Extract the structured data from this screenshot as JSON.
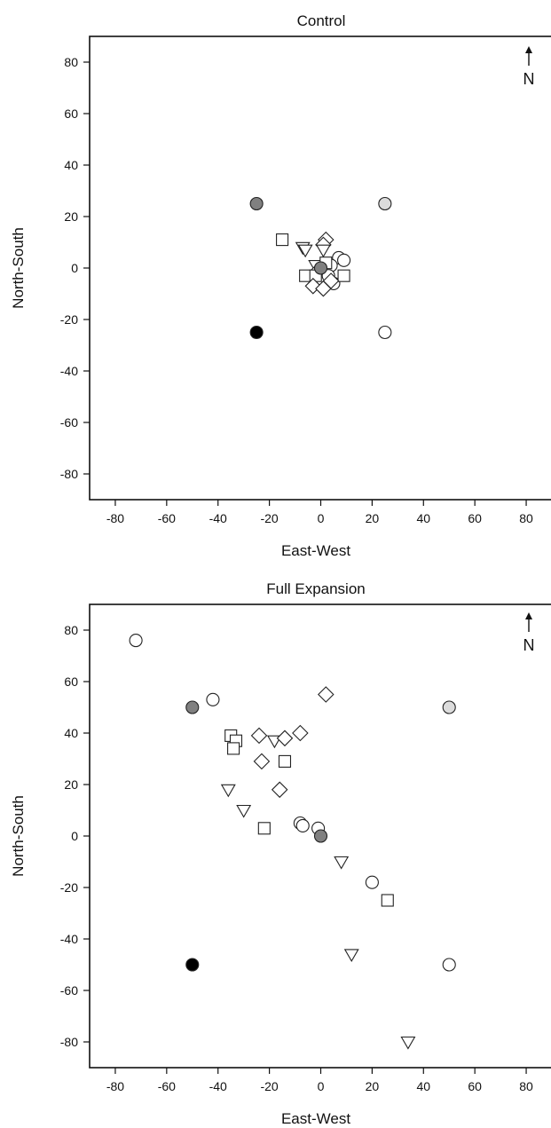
{
  "chart_data": [
    {
      "type": "scatter",
      "title": "Control",
      "xlabel": "East-West",
      "ylabel": "North-South",
      "xlim": [
        -90,
        90
      ],
      "ylim": [
        -90,
        90
      ],
      "xticks": [
        -80,
        -60,
        -40,
        -20,
        0,
        20,
        40,
        60,
        80
      ],
      "yticks": [
        -80,
        -60,
        -40,
        -20,
        0,
        20,
        40,
        60,
        80
      ],
      "grid": false,
      "north_label": "N",
      "markers": {
        "source_center": {
          "shape": "circle",
          "fill": "#808080"
        },
        "source_nw": {
          "shape": "circle",
          "fill": "#808080"
        },
        "source_sw": {
          "shape": "circle",
          "fill": "#000000"
        },
        "source_ne": {
          "shape": "circle",
          "fill": "#dcdcdc"
        },
        "source_se": {
          "shape": "circle",
          "fill": "#ffffff"
        },
        "circle": {
          "shape": "circle",
          "fill": "#ffffff"
        },
        "square": {
          "shape": "square",
          "fill": "#ffffff"
        },
        "diamond": {
          "shape": "diamond",
          "fill": "#ffffff"
        },
        "triangle": {
          "shape": "triangle-down",
          "fill": "#ffffff"
        }
      },
      "points": [
        {
          "x": -25,
          "y": 25,
          "marker": "source_nw"
        },
        {
          "x": 25,
          "y": 25,
          "marker": "source_ne"
        },
        {
          "x": -25,
          "y": -25,
          "marker": "source_sw"
        },
        {
          "x": 25,
          "y": -25,
          "marker": "source_se"
        },
        {
          "x": -15,
          "y": 11,
          "marker": "square"
        },
        {
          "x": -7,
          "y": 8,
          "marker": "triangle"
        },
        {
          "x": -6,
          "y": 7,
          "marker": "triangle"
        },
        {
          "x": 2,
          "y": 11,
          "marker": "diamond"
        },
        {
          "x": 1,
          "y": 9,
          "marker": "diamond"
        },
        {
          "x": 1,
          "y": 7,
          "marker": "triangle"
        },
        {
          "x": 7,
          "y": 4,
          "marker": "circle"
        },
        {
          "x": 9,
          "y": 3,
          "marker": "circle"
        },
        {
          "x": 4,
          "y": 1,
          "marker": "circle"
        },
        {
          "x": -2,
          "y": 1,
          "marker": "triangle"
        },
        {
          "x": -1,
          "y": -1,
          "marker": "diamond"
        },
        {
          "x": 2,
          "y": 2,
          "marker": "square"
        },
        {
          "x": -6,
          "y": -3,
          "marker": "square"
        },
        {
          "x": -2,
          "y": -3,
          "marker": "square"
        },
        {
          "x": 3,
          "y": -3,
          "marker": "circle"
        },
        {
          "x": 5,
          "y": -6,
          "marker": "circle"
        },
        {
          "x": 9,
          "y": -3,
          "marker": "square"
        },
        {
          "x": -3,
          "y": -7,
          "marker": "diamond"
        },
        {
          "x": 1,
          "y": -8,
          "marker": "diamond"
        },
        {
          "x": 4,
          "y": -5,
          "marker": "diamond"
        },
        {
          "x": 0,
          "y": 0,
          "marker": "source_center"
        }
      ]
    },
    {
      "type": "scatter",
      "title": "Full Expansion",
      "xlabel": "East-West",
      "ylabel": "North-South",
      "xlim": [
        -90,
        90
      ],
      "ylim": [
        -90,
        90
      ],
      "xticks": [
        -80,
        -60,
        -40,
        -20,
        0,
        20,
        40,
        60,
        80
      ],
      "yticks": [
        -80,
        -60,
        -40,
        -20,
        0,
        20,
        40,
        60,
        80
      ],
      "grid": false,
      "north_label": "N",
      "markers": {
        "source_center": {
          "shape": "circle",
          "fill": "#808080"
        },
        "source_nw": {
          "shape": "circle",
          "fill": "#808080"
        },
        "source_sw": {
          "shape": "circle",
          "fill": "#000000"
        },
        "source_ne": {
          "shape": "circle",
          "fill": "#dcdcdc"
        },
        "source_se": {
          "shape": "circle",
          "fill": "#ffffff"
        },
        "circle": {
          "shape": "circle",
          "fill": "#ffffff"
        },
        "square": {
          "shape": "square",
          "fill": "#ffffff"
        },
        "diamond": {
          "shape": "diamond",
          "fill": "#ffffff"
        },
        "triangle": {
          "shape": "triangle-down",
          "fill": "#ffffff"
        }
      },
      "points": [
        {
          "x": -72,
          "y": 76,
          "marker": "circle"
        },
        {
          "x": -50,
          "y": 50,
          "marker": "source_nw"
        },
        {
          "x": -42,
          "y": 53,
          "marker": "circle"
        },
        {
          "x": 50,
          "y": 50,
          "marker": "source_ne"
        },
        {
          "x": 2,
          "y": 55,
          "marker": "diamond"
        },
        {
          "x": -35,
          "y": 39,
          "marker": "square"
        },
        {
          "x": -33,
          "y": 37,
          "marker": "square"
        },
        {
          "x": -34,
          "y": 34,
          "marker": "square"
        },
        {
          "x": -24,
          "y": 39,
          "marker": "diamond"
        },
        {
          "x": -18,
          "y": 37,
          "marker": "triangle"
        },
        {
          "x": -14,
          "y": 38,
          "marker": "diamond"
        },
        {
          "x": -8,
          "y": 40,
          "marker": "diamond"
        },
        {
          "x": -23,
          "y": 29,
          "marker": "diamond"
        },
        {
          "x": -14,
          "y": 29,
          "marker": "square"
        },
        {
          "x": -16,
          "y": 18,
          "marker": "diamond"
        },
        {
          "x": -36,
          "y": 18,
          "marker": "triangle"
        },
        {
          "x": -30,
          "y": 10,
          "marker": "triangle"
        },
        {
          "x": -22,
          "y": 3,
          "marker": "square"
        },
        {
          "x": -8,
          "y": 5,
          "marker": "circle"
        },
        {
          "x": -7,
          "y": 4,
          "marker": "circle"
        },
        {
          "x": -1,
          "y": 3,
          "marker": "circle"
        },
        {
          "x": 0,
          "y": 0,
          "marker": "source_center"
        },
        {
          "x": 8,
          "y": -10,
          "marker": "triangle"
        },
        {
          "x": 20,
          "y": -18,
          "marker": "circle"
        },
        {
          "x": 26,
          "y": -25,
          "marker": "square"
        },
        {
          "x": 12,
          "y": -46,
          "marker": "triangle"
        },
        {
          "x": 50,
          "y": -50,
          "marker": "source_se"
        },
        {
          "x": -50,
          "y": -50,
          "marker": "source_sw"
        },
        {
          "x": 34,
          "y": -80,
          "marker": "triangle"
        }
      ]
    }
  ]
}
